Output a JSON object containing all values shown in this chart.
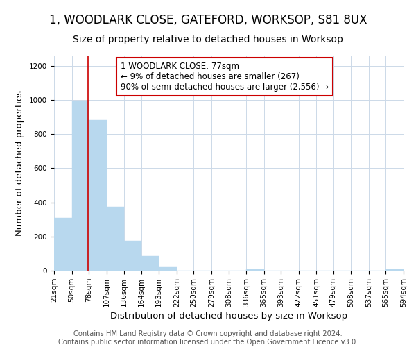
{
  "title": "1, WOODLARK CLOSE, GATEFORD, WORKSOP, S81 8UX",
  "subtitle": "Size of property relative to detached houses in Worksop",
  "xlabel": "Distribution of detached houses by size in Worksop",
  "ylabel": "Number of detached properties",
  "bar_edges": [
    21,
    50,
    78,
    107,
    136,
    164,
    193,
    222,
    250,
    279,
    308,
    336,
    365,
    393,
    422,
    451,
    479,
    508,
    537,
    565,
    594
  ],
  "bar_heights": [
    310,
    990,
    880,
    375,
    175,
    85,
    20,
    0,
    0,
    0,
    0,
    10,
    0,
    0,
    0,
    0,
    0,
    0,
    0,
    10
  ],
  "bar_color": "#b8d8ee",
  "bar_edge_color": "#b8d8ee",
  "property_value": 77,
  "property_line_color": "#cc0000",
  "annotation_line1": "1 WOODLARK CLOSE: 77sqm",
  "annotation_line2": "← 9% of detached houses are smaller (267)",
  "annotation_line3": "90% of semi-detached houses are larger (2,556) →",
  "annotation_box_color": "#ffffff",
  "annotation_box_edge_color": "#cc0000",
  "ylim": [
    0,
    1260
  ],
  "yticks": [
    0,
    200,
    400,
    600,
    800,
    1000,
    1200
  ],
  "footer_line1": "Contains HM Land Registry data © Crown copyright and database right 2024.",
  "footer_line2": "Contains public sector information licensed under the Open Government Licence v3.0.",
  "background_color": "#ffffff",
  "grid_color": "#ccd9e8",
  "title_fontsize": 12,
  "subtitle_fontsize": 10,
  "axis_label_fontsize": 9.5,
  "tick_fontsize": 7.5,
  "annotation_fontsize": 8.5,
  "footer_fontsize": 7.2
}
